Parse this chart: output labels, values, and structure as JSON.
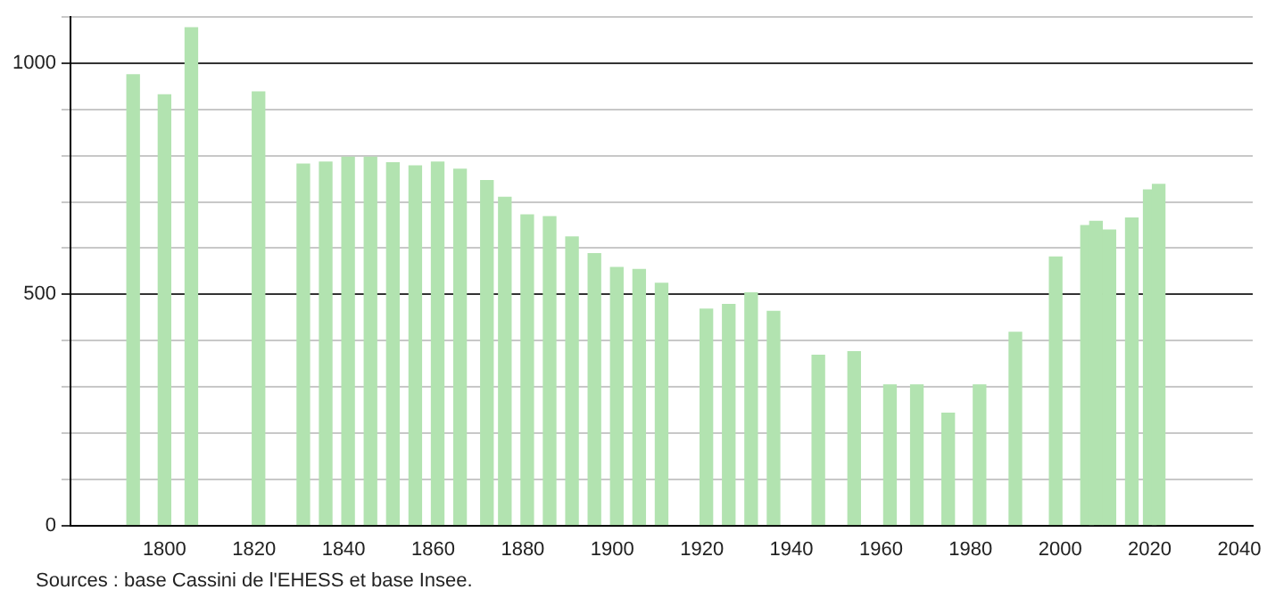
{
  "chart_data": {
    "type": "bar",
    "color": "#b2e3b0",
    "x": [
      1793,
      1800,
      1806,
      1821,
      1831,
      1836,
      1841,
      1846,
      1851,
      1856,
      1861,
      1866,
      1872,
      1876,
      1881,
      1886,
      1891,
      1896,
      1901,
      1906,
      1911,
      1921,
      1926,
      1931,
      1936,
      1946,
      1954,
      1962,
      1968,
      1975,
      1982,
      1990,
      1999,
      2006,
      2008,
      2011,
      2016,
      2020,
      2022
    ],
    "values": [
      975,
      932,
      1077,
      938,
      782,
      786,
      797,
      797,
      785,
      778,
      786,
      771,
      746,
      710,
      672,
      668,
      624,
      588,
      558,
      554,
      524,
      468,
      478,
      503,
      463,
      368,
      376,
      304,
      304,
      243,
      304,
      418,
      581,
      649,
      658,
      639,
      665,
      726,
      738
    ],
    "xlim": [
      1779,
      2043
    ],
    "xticks": [
      1800,
      1820,
      1840,
      1860,
      1880,
      1900,
      1920,
      1940,
      1960,
      1980,
      2000,
      2020,
      2040
    ],
    "ylim": [
      0,
      1100
    ],
    "yticks": [
      0,
      {
        "value": 100,
        "label": null
      },
      {
        "value": 200,
        "label": null
      },
      {
        "value": 300,
        "label": null
      },
      {
        "value": 400,
        "label": null
      },
      500,
      {
        "value": 600,
        "label": null
      },
      {
        "value": 700,
        "label": null
      },
      {
        "value": 800,
        "label": null
      },
      {
        "value": 900,
        "label": null
      },
      1000,
      {
        "value": 1100,
        "label": null
      }
    ],
    "grid": "y",
    "legend": false,
    "annotations": [
      "Sources : base Cassini de l'EHESS et base Insee."
    ]
  }
}
